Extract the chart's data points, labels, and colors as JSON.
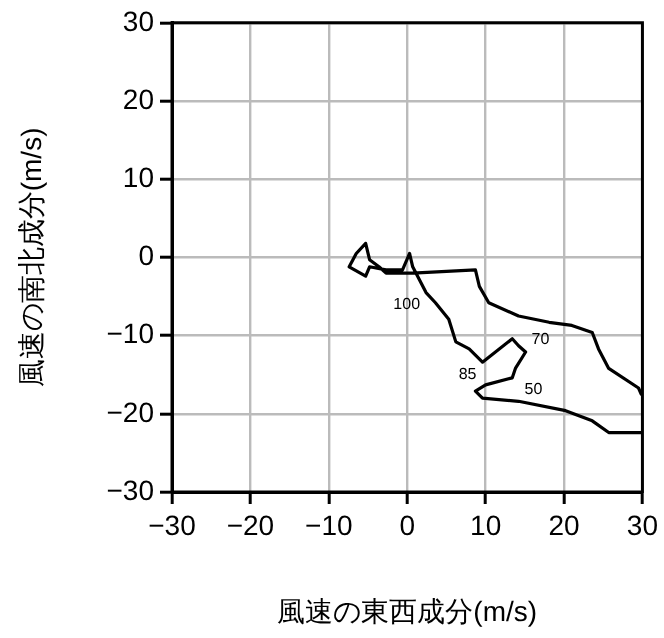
{
  "chart_data": {
    "type": "line",
    "xlabel": "風速の東西成分(m/s)",
    "ylabel": "風速の南北成分(m/s)",
    "xlim": [
      -30,
      30
    ],
    "ylim": [
      -30,
      30
    ],
    "xticks": [
      -30,
      -20,
      -10,
      0,
      10,
      20,
      30
    ],
    "yticks": [
      -30,
      -20,
      -10,
      0,
      10,
      20,
      30
    ],
    "grid": true,
    "legend": false,
    "marker": "none",
    "line_style": "solid",
    "series": [
      {
        "color": "#000000",
        "x": [
          29.9,
          29.5,
          25.7,
          24.4,
          23.6,
          21.0,
          18.1,
          14.2,
          10.4,
          9.2,
          8.7,
          0.7,
          -0.6,
          -2.7,
          -3.6,
          -4.8,
          -5.3,
          -6.5,
          -7.4,
          -5.3,
          -4.8,
          -2.7,
          -0.6,
          0.3,
          0.7,
          2.4,
          3.6,
          5.3,
          6.2,
          7.9,
          9.6,
          13.4,
          14.2,
          15.1,
          13.8,
          13.4,
          10.0,
          8.7,
          9.6,
          14.2,
          20.2,
          23.6,
          25.7,
          29.9
        ],
        "values": [
          -17.6,
          -16.7,
          -14.2,
          -11.7,
          -9.6,
          -8.7,
          -8.3,
          -7.5,
          -5.8,
          -3.7,
          -1.6,
          -2.0,
          -2.0,
          -2.0,
          -1.2,
          -0.3,
          1.8,
          0.5,
          -1.2,
          -2.4,
          -1.2,
          -1.6,
          -1.6,
          0.5,
          -1.2,
          -4.5,
          -5.8,
          -7.9,
          -10.8,
          -11.7,
          -13.4,
          -10.4,
          -11.3,
          -12.1,
          -14.2,
          -15.4,
          -16.3,
          -17.1,
          -18.0,
          -18.4,
          -19.6,
          -20.9,
          -22.4,
          -22.4
        ]
      }
    ],
    "annotations": [
      {
        "text": "100",
        "x": 2.4,
        "y": -4.5
      },
      {
        "text": "85",
        "x": 9.6,
        "y": -13.4
      },
      {
        "text": "70",
        "x": 15.1,
        "y": -12.1
      },
      {
        "text": "50",
        "x": 14.2,
        "y": -18.4
      }
    ]
  }
}
